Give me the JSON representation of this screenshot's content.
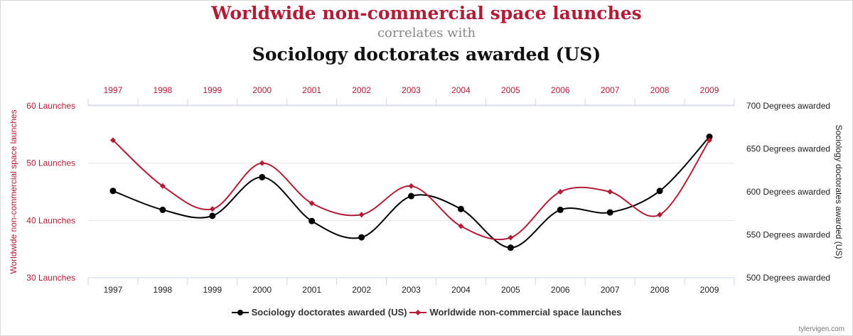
{
  "colors": {
    "series_a": "#b11c36",
    "series_b": "#000000",
    "grid": "#e6e6e6",
    "axis": "#ccd6eb",
    "subtitle": "#888888"
  },
  "chart_data": {
    "type": "line",
    "title": "Worldwide non-commercial space launches",
    "subtitle": "correlates with",
    "title2": "Sociology doctorates awarded (US)",
    "x": [
      "1997",
      "1998",
      "1999",
      "2000",
      "2001",
      "2002",
      "2003",
      "2004",
      "2005",
      "2006",
      "2007",
      "2008",
      "2009"
    ],
    "series": [
      {
        "name": "Sociology doctorates awarded (US)",
        "axis": "right",
        "color": "#000000",
        "marker": "circle",
        "values": [
          601,
          579,
          572,
          617,
          566,
          547,
          595,
          580,
          535,
          579,
          576,
          601,
          664
        ]
      },
      {
        "name": "Worldwide non-commercial space launches",
        "axis": "left",
        "color": "#b11c36",
        "marker": "diamond",
        "values": [
          54,
          46,
          42,
          50,
          43,
          41,
          46,
          39,
          37,
          45,
          45,
          41,
          54
        ]
      }
    ],
    "y_left": {
      "label": "Worldwide non-commercial space launches",
      "ticks": [
        "30 Launches",
        "40 Launches",
        "50 Launches",
        "60 Launches"
      ],
      "ylim": [
        30,
        60
      ]
    },
    "y_right": {
      "label": "Sociology doctorates awarded (US)",
      "ticks": [
        "500 Degrees awarded",
        "550 Degrees awarded",
        "600 Degrees awarded",
        "650 Degrees awarded",
        "700 Degrees awarded"
      ],
      "ylim": [
        500,
        700
      ]
    },
    "grid": true,
    "legend": "bottom-center",
    "credit": "tylervigen.com"
  }
}
